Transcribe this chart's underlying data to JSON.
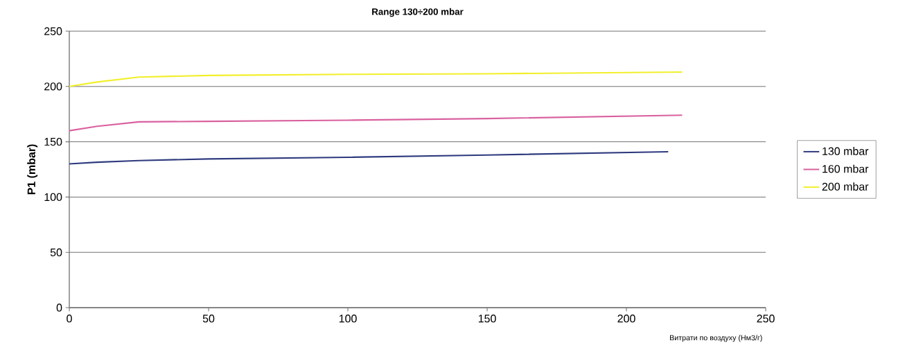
{
  "chart_data": {
    "type": "line",
    "title": "Range 130÷200 mbar",
    "xlabel": "Витрати по воздуху (Нм3/г)",
    "ylabel": "P1 (mbar)",
    "xlim": [
      0,
      250
    ],
    "xticks": [
      0,
      50,
      100,
      150,
      200,
      250
    ],
    "ylim": [
      0,
      250
    ],
    "yticks": [
      0,
      50,
      100,
      150,
      200,
      250
    ],
    "grid": "y",
    "legend": "right",
    "marker": "none",
    "line_style": "solid",
    "series": [
      {
        "name": "130 mbar",
        "color": "#2e3a7e",
        "x": [
          0,
          10,
          25,
          50,
          100,
          150,
          215
        ],
        "values": [
          130,
          131.5,
          133,
          134.5,
          136,
          138,
          141
        ]
      },
      {
        "name": "160 mbar",
        "color": "#d9609f",
        "x": [
          0,
          10,
          25,
          50,
          100,
          150,
          220
        ],
        "values": [
          160,
          164,
          168,
          168.5,
          169.5,
          171,
          174
        ]
      },
      {
        "name": "200 mbar",
        "color": "#f2ef2a",
        "x": [
          0,
          10,
          25,
          50,
          100,
          150,
          220
        ],
        "values": [
          200,
          204,
          208.5,
          210,
          211,
          211.5,
          213
        ]
      }
    ]
  }
}
